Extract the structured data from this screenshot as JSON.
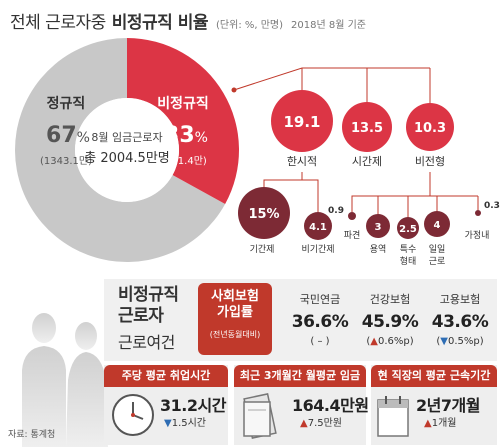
{
  "title": {
    "main": "전체 근로자중",
    "strong": "비정규직 비율",
    "unit": "(단위: %, 만명)",
    "date": "2018년 8월 기준"
  },
  "donut": {
    "center_label": "8월 임금근로자",
    "total": "총 2004.5만명",
    "regular": {
      "label": "정규직",
      "pct": "67",
      "pct_sign": "%",
      "count": "(1343.1만)",
      "color": "#c8c8c8"
    },
    "nonregular": {
      "label": "비정규직",
      "pct": "33",
      "pct_sign": "%",
      "count": "(661.4만)",
      "color": "#dc3545"
    }
  },
  "chart_data": {
    "type": "pie",
    "categories": [
      "정규직",
      "비정규직"
    ],
    "values": [
      67,
      33
    ],
    "counts": [
      1343.1,
      661.4
    ],
    "breakdown": [
      {
        "name": "한시적",
        "value": 19.1
      },
      {
        "name": "시간제",
        "value": 13.5
      },
      {
        "name": "비전형",
        "value": 10.3
      },
      {
        "name": "기간제",
        "value": 15,
        "parent": "한시적"
      },
      {
        "name": "비기간제",
        "value": 4.1,
        "parent": "한시적"
      },
      {
        "name": "파견",
        "value": 0.9,
        "parent": "비전형"
      },
      {
        "name": "용역",
        "value": 3,
        "parent": "비전형"
      },
      {
        "name": "특수형태",
        "value": 2.5,
        "parent": "비전형"
      },
      {
        "name": "일일근로",
        "value": 4,
        "parent": "비전형"
      },
      {
        "name": "가정내",
        "value": 0.3,
        "parent": "비전형"
      }
    ]
  },
  "bubbles": {
    "temp": {
      "value": "19.1",
      "label": "한시적"
    },
    "part": {
      "value": "13.5",
      "label": "시간제"
    },
    "atyp": {
      "value": "10.3",
      "label": "비전형"
    },
    "fixed": {
      "value": "15%",
      "label": "기간제"
    },
    "nonfixed": {
      "value": "4.1",
      "label": "비기간제"
    },
    "dispatch": {
      "value": "0.9",
      "label": "파견"
    },
    "service": {
      "value": "3",
      "label": "용역"
    },
    "special": {
      "value": "2.5",
      "label1": "특수",
      "label2": "형태"
    },
    "daily": {
      "value": "4",
      "label1": "일일",
      "label2": "근로"
    },
    "home": {
      "value": "0.3",
      "label": "가정내"
    }
  },
  "conditions": {
    "title1": "비정규직",
    "title2": "근로자",
    "subtitle": "근로여건",
    "insurance": {
      "box1": "사회보험",
      "box2": "가입률",
      "box_note": "(전년동월대비)",
      "items": [
        {
          "name": "국민연금",
          "value": "36.6%",
          "change": "( – )"
        },
        {
          "name": "건강보험",
          "value": "45.9%",
          "change_arrow": "▲",
          "change": "0.6%p"
        },
        {
          "name": "고용보험",
          "value": "43.6%",
          "change_arrow": "▼",
          "change": "0.5%p"
        }
      ]
    }
  },
  "cards": [
    {
      "head": "주당 평균 취업시간",
      "value": "31.2시간",
      "arrow": "▼",
      "change": "1.5시간"
    },
    {
      "head": "최근 3개월간 월평균 임금",
      "value": "164.4만원",
      "arrow": "▲",
      "change": "7.5만원"
    },
    {
      "head": "현 직장의 평균 근속기간",
      "value": "2년7개월",
      "arrow": "▲",
      "change": "1개월"
    }
  ],
  "source": "자료: 통계청",
  "colors": {
    "accent": "#dc3545",
    "dark": "#7d2a35",
    "grey": "#c8c8c8"
  }
}
